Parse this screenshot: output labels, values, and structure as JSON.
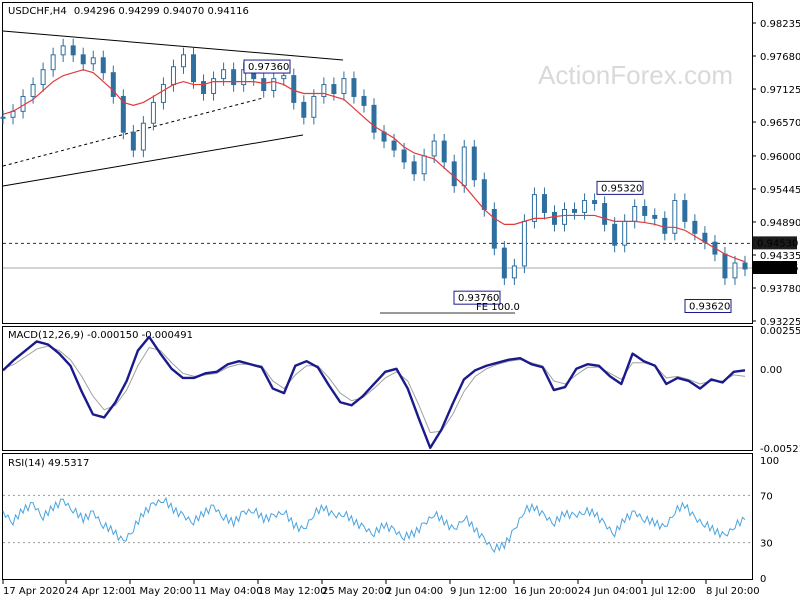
{
  "header": {
    "symbol": "USDCHF,H4",
    "ohlc": "0.94296 0.94299 0.94070 0.94116"
  },
  "watermark": "ActionForex.com",
  "colors": {
    "price": "#2f6f9f",
    "ma": "#e03a3a",
    "macd": "#1a1a8c",
    "signal": "#a0a0a0",
    "rsi": "#4aa3df",
    "label_box": "#1a1a8c",
    "current_tag": "#000000"
  },
  "chart_data": [
    {
      "type": "line",
      "panel": "price",
      "title": "USDCHF,H4",
      "ylim": [
        0.93225,
        0.98235
      ],
      "y_ticks": [
        "0.98235",
        "0.97680",
        "0.97125",
        "0.96570",
        "0.96000",
        "0.95445",
        "0.94890",
        "0.94335",
        "0.93780",
        "0.93225"
      ],
      "x_tick_labels": [
        "17 Apr 2020",
        "24 Apr 12:00",
        "1 May 20:00",
        "11 May 04:00",
        "18 May 12:00",
        "25 May 20:00",
        "2 Jun 04:00",
        "9 Jun 12:00",
        "16 Jun 20:00",
        "24 Jun 04:00",
        "1 Jul 12:00",
        "8 Jul 20:00"
      ],
      "x": [
        0,
        6,
        12,
        18,
        24,
        30,
        36,
        42,
        48,
        54,
        60,
        66,
        72,
        78,
        84,
        90,
        96,
        102,
        108,
        114,
        120,
        126,
        132,
        138,
        144,
        150,
        156,
        162,
        168,
        174,
        180,
        186,
        192,
        198,
        204,
        210,
        216,
        222,
        228,
        234,
        240,
        246,
        252,
        258,
        264,
        270,
        276,
        282,
        288,
        294,
        300,
        306,
        312,
        318,
        324,
        330,
        336,
        342,
        348,
        354,
        360,
        366,
        372,
        378,
        384,
        390,
        396,
        402,
        408,
        414,
        420,
        426,
        432,
        438,
        444
      ],
      "close": [
        0.9665,
        0.9675,
        0.97,
        0.972,
        0.9745,
        0.977,
        0.9785,
        0.977,
        0.9755,
        0.9765,
        0.974,
        0.97,
        0.964,
        0.961,
        0.9655,
        0.969,
        0.972,
        0.975,
        0.977,
        0.9725,
        0.9705,
        0.973,
        0.9745,
        0.972,
        0.9745,
        0.973,
        0.971,
        0.973,
        0.9735,
        0.969,
        0.9665,
        0.97,
        0.972,
        0.9705,
        0.973,
        0.97,
        0.9685,
        0.964,
        0.9625,
        0.961,
        0.959,
        0.957,
        0.96,
        0.9625,
        0.959,
        0.955,
        0.9615,
        0.956,
        0.951,
        0.9445,
        0.9395,
        0.9415,
        0.949,
        0.9535,
        0.9505,
        0.9485,
        0.951,
        0.9505,
        0.9525,
        0.952,
        0.9485,
        0.945,
        0.949,
        0.9515,
        0.95,
        0.9495,
        0.947,
        0.9525,
        0.949,
        0.947,
        0.9455,
        0.9435,
        0.9395,
        0.942,
        0.941
      ],
      "series": [
        {
          "name": "MA",
          "values": [
            0.967,
            0.9675,
            0.9685,
            0.9695,
            0.971,
            0.9725,
            0.9735,
            0.974,
            0.9745,
            0.974,
            0.9725,
            0.971,
            0.969,
            0.9685,
            0.969,
            0.97,
            0.971,
            0.972,
            0.9725,
            0.972,
            0.972,
            0.9725,
            0.9725,
            0.9725,
            0.9725,
            0.9725,
            0.9722,
            0.9725,
            0.972,
            0.971,
            0.9705,
            0.9705,
            0.9705,
            0.97,
            0.9695,
            0.968,
            0.9665,
            0.965,
            0.964,
            0.963,
            0.9615,
            0.9605,
            0.96,
            0.9595,
            0.958,
            0.9565,
            0.955,
            0.953,
            0.951,
            0.9495,
            0.9485,
            0.9485,
            0.949,
            0.9495,
            0.9495,
            0.9498,
            0.95,
            0.95,
            0.95,
            0.95,
            0.9495,
            0.949,
            0.949,
            0.949,
            0.9488,
            0.9485,
            0.948,
            0.948,
            0.9475,
            0.9465,
            0.9455,
            0.9445,
            0.9435,
            0.9428,
            0.9422
          ]
        }
      ],
      "annotations": [
        {
          "label": "0.97360",
          "x": 267,
          "y": 0.9736
        },
        {
          "label": "0.93760",
          "x": 477,
          "y": 0.9376
        },
        {
          "label": "0.95320",
          "x": 620,
          "y": 0.9532
        },
        {
          "label": "0.93620",
          "x": 708,
          "y": 0.9362
        },
        {
          "label": "FE 100.0"
        }
      ],
      "levels": [
        {
          "label": "0.94530",
          "value": 0.9453,
          "style": "dashed"
        },
        {
          "label": "0.94116",
          "value": 0.94116,
          "style": "solid",
          "current": true
        },
        {
          "label": "",
          "value": 0.9336,
          "style": "solid",
          "ref": "FE 100.0"
        }
      ]
    },
    {
      "type": "line",
      "panel": "macd",
      "title": "MACD(12,26,9) -0.000150 -0.000491",
      "ylim": [
        -0.005212,
        0.002553
      ],
      "y_ticks": [
        "0.002553",
        "0.00",
        "-0.005212"
      ],
      "series": [
        {
          "name": "MACD",
          "values": [
            -0.0001,
            0.0006,
            0.0012,
            0.0018,
            0.0016,
            0.001,
            0.0002,
            -0.0015,
            -0.003,
            -0.0032,
            -0.0022,
            -0.0008,
            0.0012,
            0.0021,
            0.001,
            0.0,
            -0.0006,
            -0.0006,
            -0.0003,
            -0.0002,
            0.0003,
            0.0005,
            0.0003,
            0.0001,
            -0.0013,
            -0.0016,
            0.0002,
            0.0005,
            0.0001,
            -0.0011,
            -0.0022,
            -0.0024,
            -0.0018,
            -0.001,
            -0.0002,
            0.0,
            -0.0013,
            -0.0033,
            -0.0052,
            -0.004,
            -0.0023,
            -0.0007,
            -0.0001,
            0.0002,
            0.0004,
            0.0006,
            0.0007,
            0.0003,
            0.0001,
            -0.0014,
            -0.0012,
            0.0,
            0.0003,
            0.0002,
            -0.0005,
            -0.001,
            0.001,
            0.0005,
            0.0002,
            -0.001,
            -0.0006,
            -0.0008,
            -0.0013,
            -0.0007,
            -0.0009,
            -0.0002,
            -0.0001
          ]
        },
        {
          "name": "Signal",
          "values": [
            0.0,
            0.0003,
            0.0008,
            0.0013,
            0.0015,
            0.0012,
            0.0006,
            -0.0005,
            -0.0018,
            -0.0027,
            -0.0024,
            -0.0014,
            0.0002,
            0.0014,
            0.0012,
            0.0004,
            -0.0003,
            -0.0005,
            -0.0004,
            -0.0003,
            0.0001,
            0.0003,
            0.0003,
            0.0002,
            -0.0008,
            -0.0013,
            -0.0004,
            0.0002,
            0.0002,
            -0.0006,
            -0.0016,
            -0.0021,
            -0.0019,
            -0.0013,
            -0.0006,
            -0.0002,
            -0.0008,
            -0.0024,
            -0.0042,
            -0.0041,
            -0.003,
            -0.0015,
            -0.0005,
            0.0,
            0.0003,
            0.0005,
            0.0006,
            0.0004,
            0.0002,
            -0.0008,
            -0.001,
            -0.0004,
            0.0001,
            0.0001,
            -0.0003,
            -0.0007,
            0.0004,
            0.0004,
            0.0002,
            -0.0006,
            -0.0005,
            -0.0007,
            -0.001,
            -0.0008,
            -0.0008,
            -0.0004,
            -0.0005
          ]
        }
      ]
    },
    {
      "type": "line",
      "panel": "rsi",
      "title": "RSI(14) 49.5317",
      "ylim": [
        0,
        100
      ],
      "y_ticks": [
        "100",
        "70",
        "30",
        "0"
      ],
      "levels": [
        {
          "value": 70
        },
        {
          "value": 30
        }
      ],
      "series": [
        {
          "name": "RSI",
          "values": [
            55,
            48,
            58,
            62,
            52,
            60,
            65,
            58,
            50,
            55,
            45,
            40,
            30,
            42,
            55,
            62,
            67,
            58,
            52,
            48,
            55,
            60,
            52,
            47,
            55,
            58,
            50,
            52,
            57,
            45,
            40,
            55,
            60,
            52,
            55,
            48,
            42,
            38,
            45,
            40,
            35,
            38,
            45,
            55,
            48,
            40,
            52,
            42,
            32,
            25,
            28,
            40,
            58,
            60,
            52,
            47,
            55,
            52,
            57,
            55,
            45,
            38,
            50,
            55,
            50,
            47,
            42,
            57,
            62,
            50,
            46,
            40,
            35,
            45,
            49.5
          ]
        }
      ]
    }
  ]
}
